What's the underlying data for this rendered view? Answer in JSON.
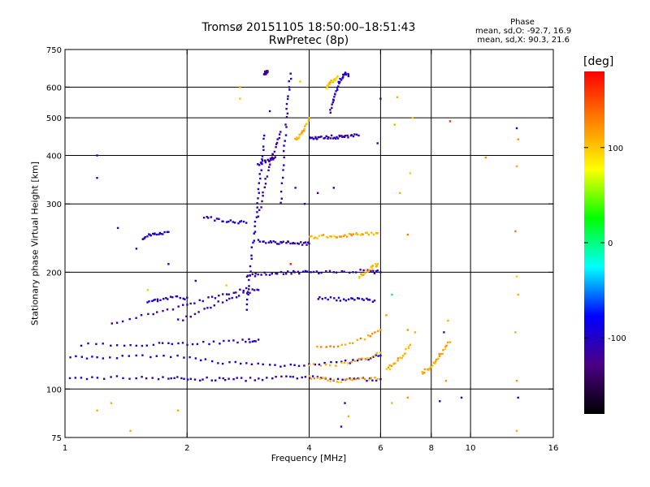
{
  "chart_data": {
    "type": "scatter",
    "title": "Tromsø 20151105 18:50:00–18:51:43",
    "subtitle": "RwPretec (8p)",
    "xlabel": "Frequency [MHz]",
    "ylabel": "Stationary phase Virtual Height [km]",
    "x_scale": "log",
    "y_scale": "log",
    "xlim": [
      1,
      16
    ],
    "ylim": [
      75,
      750
    ],
    "x_ticks": [
      1,
      2,
      4,
      6,
      8,
      10,
      16
    ],
    "x_tick_labels": [
      "1",
      "2",
      "4",
      "6",
      "8",
      "10",
      "16"
    ],
    "x_gridlines": [
      2,
      4,
      6,
      8,
      10
    ],
    "y_ticks": [
      75,
      100,
      200,
      300,
      400,
      500,
      600,
      750
    ],
    "y_tick_labels": [
      "75",
      "100",
      "200",
      "300",
      "400",
      "500",
      "600",
      "750"
    ],
    "y_gridlines": [
      100,
      200,
      300,
      400,
      500,
      600
    ],
    "grid": true,
    "phase_info": {
      "title": "Phase",
      "o_mode": "mean, sd,O: -92.7, 16.9",
      "x_mode": "mean, sd,X:  90.3, 21.6"
    },
    "colorbar": {
      "unit": "[deg]",
      "tick_labels": [
        "100",
        "0",
        "-100"
      ],
      "tick_values": [
        100,
        0,
        -100
      ],
      "range": [
        -180,
        180
      ],
      "colors": [
        "#000000",
        "#4b0082",
        "#0000ff",
        "#00ffff",
        "#00ff00",
        "#ffff00",
        "#ff8000",
        "#ff0000"
      ]
    },
    "traces": [
      {
        "phase": -100,
        "x": [
          1.0,
          1.2,
          1.5,
          1.8,
          2.0,
          2.3,
          2.6,
          3.0,
          3.5,
          4.0,
          4.6,
          5.3,
          6.0
        ],
        "y": [
          106,
          107,
          107,
          107,
          106,
          106,
          106,
          106,
          107,
          107,
          106,
          106,
          106
        ]
      },
      {
        "phase": 110,
        "x": [
          4.0,
          4.4,
          4.8,
          5.3,
          5.9
        ],
        "y": [
          107,
          106,
          105,
          106,
          106
        ]
      },
      {
        "phase": -100,
        "x": [
          1.1,
          1.4,
          1.7,
          2.0,
          2.4,
          2.8,
          3.0
        ],
        "y": [
          130,
          130,
          131,
          131,
          132,
          133,
          134
        ]
      },
      {
        "phase": -90,
        "x": [
          1.0,
          1.2,
          1.5,
          1.9,
          2.3,
          2.8,
          3.4,
          4.0,
          4.8,
          5.5,
          6.0
        ],
        "y": [
          120,
          121,
          121,
          121,
          118,
          116,
          115,
          116,
          117,
          119,
          122
        ]
      },
      {
        "phase": 110,
        "x": [
          4.0,
          4.8,
          5.4,
          6.0
        ],
        "y": [
          115,
          116,
          119,
          124
        ]
      },
      {
        "phase": 110,
        "x": [
          6.2,
          6.5,
          6.8,
          7.1
        ],
        "y": [
          112,
          116,
          122,
          130
        ]
      },
      {
        "phase": 110,
        "x": [
          7.6,
          7.9,
          8.2,
          8.5,
          8.9
        ],
        "y": [
          110,
          113,
          118,
          124,
          132
        ]
      },
      {
        "phase": -110,
        "x": [
          1.9,
          2.2,
          2.5,
          2.8,
          3.0
        ],
        "y": [
          150,
          160,
          170,
          178,
          180
        ]
      },
      {
        "phase": -110,
        "x": [
          1.3,
          1.6,
          1.9,
          2.2,
          2.5,
          2.8
        ],
        "y": [
          147,
          155,
          163,
          170,
          176,
          182
        ]
      },
      {
        "phase": -105,
        "x": [
          2.8,
          3.0,
          3.3,
          3.6,
          3.9,
          4.3,
          4.9,
          5.6,
          6.0
        ],
        "y": [
          195,
          197,
          199,
          200,
          200,
          200,
          201,
          201,
          200
        ]
      },
      {
        "phase": -90,
        "x": [
          2.8,
          2.85,
          2.9,
          2.95,
          3.0,
          3.05,
          3.1
        ],
        "y": [
          160,
          190,
          230,
          270,
          320,
          380,
          450
        ]
      },
      {
        "phase": -115,
        "x": [
          3.0,
          3.1,
          3.2,
          3.3,
          3.4
        ],
        "y": [
          280,
          330,
          380,
          420,
          460
        ]
      },
      {
        "phase": -100,
        "x": [
          3.4,
          3.45,
          3.5,
          3.55,
          3.6
        ],
        "y": [
          300,
          380,
          470,
          560,
          650
        ]
      },
      {
        "phase": -100,
        "x": [
          2.2,
          2.4,
          2.6,
          2.8
        ],
        "y": [
          277,
          273,
          270,
          268
        ]
      },
      {
        "phase": -110,
        "x": [
          3.0,
          3.1,
          3.2,
          3.3
        ],
        "y": [
          378,
          385,
          390,
          396
        ]
      },
      {
        "phase": 110,
        "x": [
          3.7,
          3.8,
          3.9,
          4.0
        ],
        "y": [
          440,
          450,
          470,
          500
        ]
      },
      {
        "phase": 110,
        "x": [
          4.0,
          4.3,
          4.6,
          4.9,
          5.2,
          5.5,
          5.9
        ],
        "y": [
          246,
          247,
          248,
          249,
          250,
          251,
          252
        ]
      },
      {
        "phase": -110,
        "x": [
          3.0,
          3.2,
          3.4,
          3.6,
          3.8,
          4.0
        ],
        "y": [
          240,
          239,
          238,
          238,
          237,
          237
        ]
      },
      {
        "phase": -110,
        "x": [
          4.0,
          4.2,
          4.4,
          4.6,
          4.8,
          5.0,
          5.3
        ],
        "y": [
          445,
          445,
          446,
          446,
          447,
          448,
          450
        ]
      },
      {
        "phase": -100,
        "x": [
          4.5,
          4.6,
          4.7,
          4.8,
          4.9,
          5.0
        ],
        "y": [
          520,
          560,
          600,
          630,
          650,
          640
        ]
      },
      {
        "phase": -120,
        "x": [
          3.1,
          3.12,
          3.14,
          3.16
        ],
        "y": [
          650,
          652,
          654,
          656
        ]
      },
      {
        "phase": 100,
        "x": [
          4.4,
          4.5,
          4.6,
          4.7
        ],
        "y": [
          600,
          615,
          625,
          640
        ]
      },
      {
        "phase": 110,
        "x": [
          5.3,
          5.5,
          5.7,
          5.9
        ],
        "y": [
          195,
          200,
          206,
          210
        ]
      },
      {
        "phase": -100,
        "x": [
          4.2,
          4.6,
          5.0,
          5.4,
          5.8
        ],
        "y": [
          172,
          171,
          170,
          170,
          169
        ]
      },
      {
        "phase": 120,
        "x": [
          4.2,
          4.8,
          5.5,
          6.0
        ],
        "y": [
          128,
          130,
          135,
          142
        ]
      },
      {
        "phase": -100,
        "x": [
          1.55,
          1.62,
          1.7,
          1.8
        ],
        "y": [
          245,
          250,
          252,
          254
        ]
      },
      {
        "phase": -100,
        "x": [
          1.6,
          1.7,
          1.85,
          2.0
        ],
        "y": [
          168,
          170,
          172,
          172
        ]
      }
    ],
    "points": [
      {
        "x": 6.6,
        "y": 565,
        "phase": 110
      },
      {
        "x": 7.2,
        "y": 500,
        "phase": 100
      },
      {
        "x": 6.7,
        "y": 320,
        "phase": 110
      },
      {
        "x": 7.0,
        "y": 250,
        "phase": 130
      },
      {
        "x": 7.1,
        "y": 360,
        "phase": 100
      },
      {
        "x": 8.9,
        "y": 490,
        "phase": 160
      },
      {
        "x": 10.9,
        "y": 395,
        "phase": 120
      },
      {
        "x": 13.0,
        "y": 470,
        "phase": -100
      },
      {
        "x": 13.1,
        "y": 440,
        "phase": 120
      },
      {
        "x": 13.0,
        "y": 375,
        "phase": 110
      },
      {
        "x": 12.9,
        "y": 255,
        "phase": 130
      },
      {
        "x": 13.0,
        "y": 195,
        "phase": 100
      },
      {
        "x": 13.1,
        "y": 175,
        "phase": 110
      },
      {
        "x": 12.9,
        "y": 140,
        "phase": 110
      },
      {
        "x": 13.0,
        "y": 105,
        "phase": 120
      },
      {
        "x": 13.1,
        "y": 95,
        "phase": -100
      },
      {
        "x": 13.0,
        "y": 78,
        "phase": 110
      },
      {
        "x": 12.9,
        "y": 74,
        "phase": 120
      },
      {
        "x": 9.5,
        "y": 95,
        "phase": -100
      },
      {
        "x": 8.7,
        "y": 105,
        "phase": 120
      },
      {
        "x": 8.4,
        "y": 93,
        "phase": -100
      },
      {
        "x": 4.9,
        "y": 92,
        "phase": -100
      },
      {
        "x": 4.8,
        "y": 80,
        "phase": -100
      },
      {
        "x": 5.0,
        "y": 85,
        "phase": 110
      },
      {
        "x": 6.4,
        "y": 92,
        "phase": 110
      },
      {
        "x": 7.0,
        "y": 95,
        "phase": 120
      },
      {
        "x": 1.3,
        "y": 92,
        "phase": 110
      },
      {
        "x": 1.2,
        "y": 88,
        "phase": 110
      },
      {
        "x": 1.45,
        "y": 78,
        "phase": 110
      },
      {
        "x": 1.9,
        "y": 88,
        "phase": 110
      },
      {
        "x": 1.2,
        "y": 350,
        "phase": -100
      },
      {
        "x": 1.2,
        "y": 400,
        "phase": -100
      },
      {
        "x": 1.35,
        "y": 260,
        "phase": -100
      },
      {
        "x": 1.5,
        "y": 230,
        "phase": -100
      },
      {
        "x": 1.8,
        "y": 210,
        "phase": -100
      },
      {
        "x": 2.1,
        "y": 190,
        "phase": -100
      },
      {
        "x": 2.7,
        "y": 600,
        "phase": 110
      },
      {
        "x": 2.7,
        "y": 560,
        "phase": 100
      },
      {
        "x": 3.2,
        "y": 520,
        "phase": -100
      },
      {
        "x": 3.8,
        "y": 620,
        "phase": 100
      },
      {
        "x": 3.7,
        "y": 330,
        "phase": -110
      },
      {
        "x": 3.9,
        "y": 300,
        "phase": -100
      },
      {
        "x": 4.6,
        "y": 330,
        "phase": -100
      },
      {
        "x": 4.2,
        "y": 320,
        "phase": -120
      },
      {
        "x": 5.9,
        "y": 430,
        "phase": -100
      },
      {
        "x": 6.0,
        "y": 560,
        "phase": -100
      },
      {
        "x": 6.5,
        "y": 480,
        "phase": 110
      },
      {
        "x": 7.3,
        "y": 140,
        "phase": 110
      },
      {
        "x": 7.0,
        "y": 142,
        "phase": 120
      },
      {
        "x": 8.6,
        "y": 140,
        "phase": -100
      },
      {
        "x": 8.8,
        "y": 150,
        "phase": 110
      },
      {
        "x": 6.4,
        "y": 175,
        "phase": 10
      },
      {
        "x": 6.2,
        "y": 155,
        "phase": 120
      },
      {
        "x": 2.5,
        "y": 185,
        "phase": 100
      },
      {
        "x": 1.6,
        "y": 180,
        "phase": 100
      },
      {
        "x": 3.6,
        "y": 210,
        "phase": 170
      }
    ]
  }
}
